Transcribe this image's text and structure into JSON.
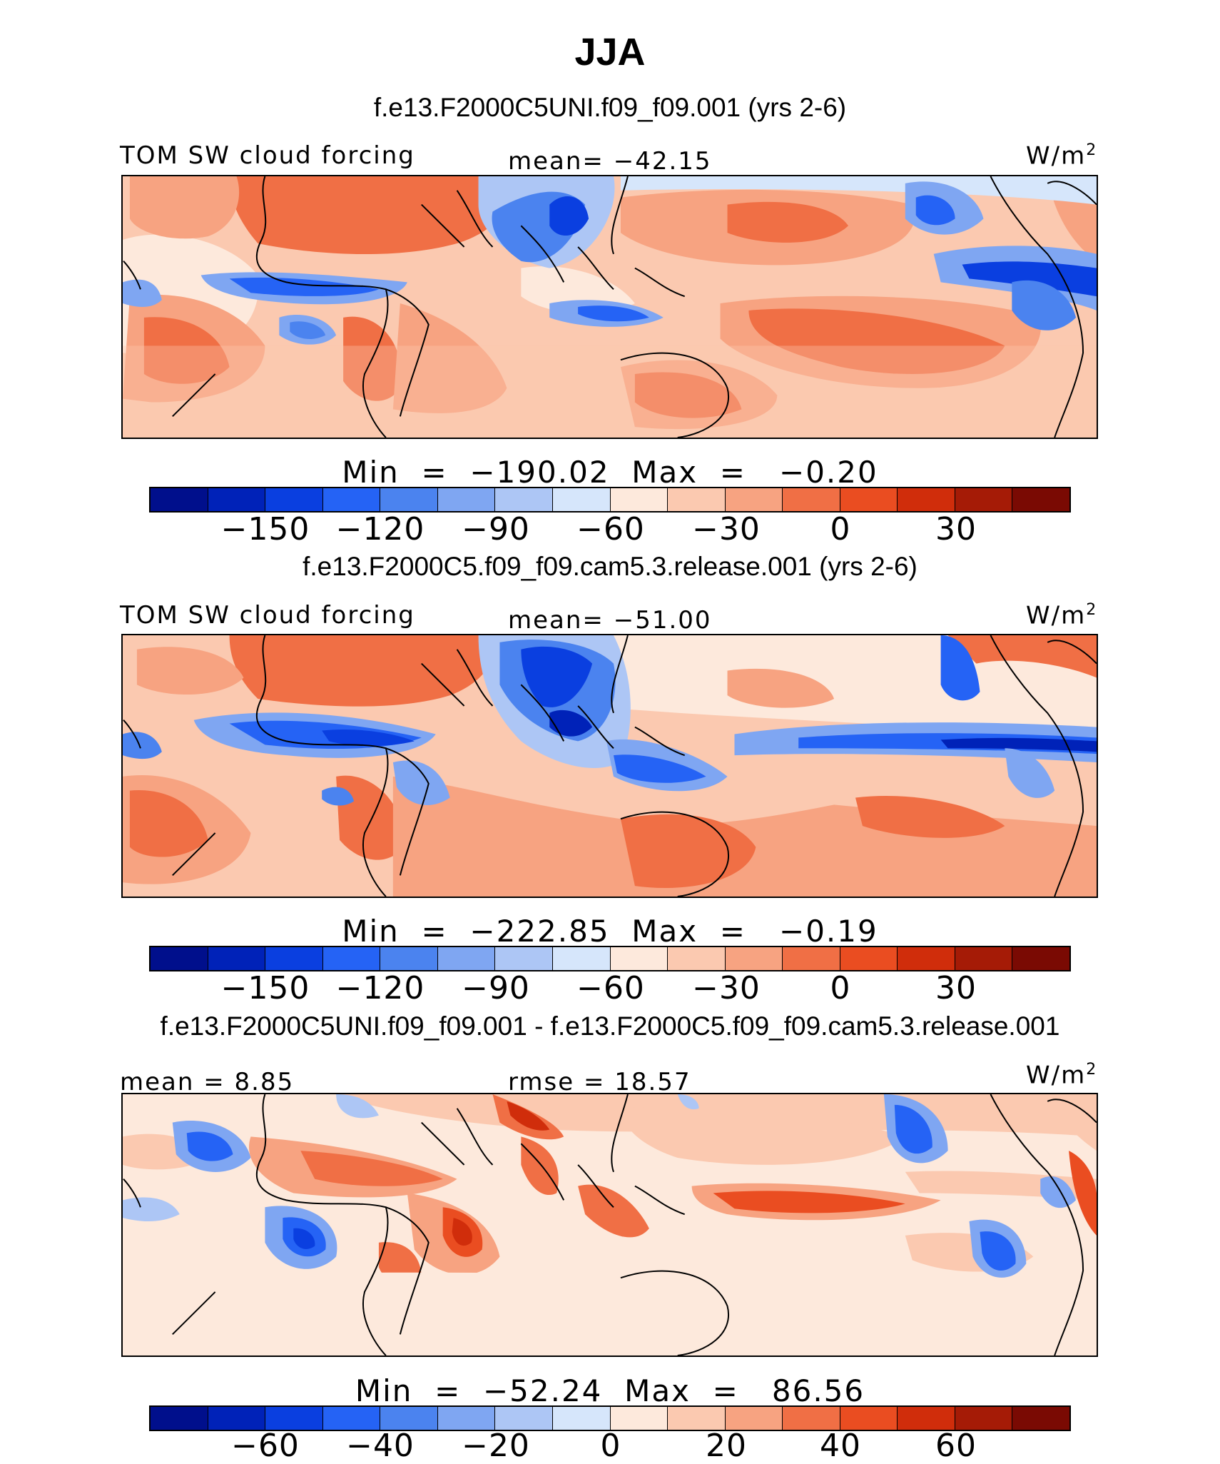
{
  "page": {
    "title": "JJA"
  },
  "colors": {
    "model_scale": [
      "#000f8c",
      "#0022b8",
      "#0a3fe0",
      "#2563f5",
      "#4b83ef",
      "#7fa6f2",
      "#adc6f5",
      "#d6e6fb",
      "#fde9dc",
      "#fbc9b0",
      "#f7a381",
      "#f06f45",
      "#ea4d21",
      "#d02d0b",
      "#a51b06",
      "#7a0a03"
    ],
    "diff_scale": [
      "#000f8c",
      "#0022b8",
      "#0a3fe0",
      "#2563f5",
      "#4b83ef",
      "#7fa6f2",
      "#adc6f5",
      "#d6e6fb",
      "#fde9dc",
      "#fbc9b0",
      "#f7a381",
      "#f06f45",
      "#ea4d21",
      "#d02d0b",
      "#a51b06",
      "#7a0a03"
    ],
    "coast": "#000000"
  },
  "panels": [
    {
      "case_title": "f.e13.F2000C5UNI.f09_f09.001 (yrs 2-6)",
      "left_label": "TOM SW cloud forcing",
      "center_label": "mean= −42.15",
      "units": "W/m",
      "units_sup": "2",
      "min_max": "Min  =  −190.02  Max  =   −0.20",
      "ticks": [
        "−150",
        "−120",
        "−90",
        "−60",
        "−30",
        "0",
        "30"
      ]
    },
    {
      "case_title": "f.e13.F2000C5.f09_f09.cam5.3.release.001 (yrs 2-6)",
      "left_label": "TOM SW cloud forcing",
      "center_label": "mean= −51.00",
      "units": "W/m",
      "units_sup": "2",
      "min_max": "Min  =  −222.85  Max  =   −0.19",
      "ticks": [
        "−150",
        "−120",
        "−90",
        "−60",
        "−30",
        "0",
        "30"
      ]
    },
    {
      "case_title": "f.e13.F2000C5UNI.f09_f09.001 - f.e13.F2000C5.f09_f09.cam5.3.release.001",
      "left_label": "mean  =    8.85",
      "center_label": "rmse  =   18.57",
      "units": "W/m",
      "units_sup": "2",
      "min_max": "Min  =  −52.24  Max  =   86.56",
      "ticks": [
        "−60",
        "−40",
        "−20",
        "0",
        "20",
        "40",
        "60"
      ]
    }
  ]
}
